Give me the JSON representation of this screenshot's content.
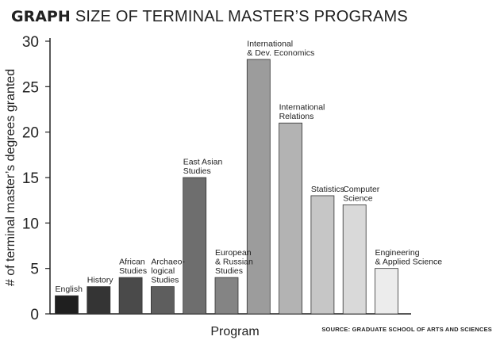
{
  "header": {
    "kicker": "GRAPH",
    "title": "SIZE OF TERMINAL MASTER’S PROGRAMS"
  },
  "source": "SOURCE: GRADUATE SCHOOL OF ARTS AND SCIENCES",
  "chart_data": {
    "type": "bar",
    "title": "SIZE OF TERMINAL MASTER’S PROGRAMS",
    "xlabel": "Program",
    "ylabel": "# of terminal master’s degrees granted",
    "ylim": [
      0,
      30
    ],
    "yticks": [
      0,
      5,
      10,
      15,
      20,
      25,
      30
    ],
    "grid": false,
    "categories": [
      [
        "English"
      ],
      [
        "History"
      ],
      [
        "African",
        "Studies"
      ],
      [
        "Archaeo-",
        "logical",
        "Studies"
      ],
      [
        "East Asian",
        "Studies"
      ],
      [
        "European",
        "& Russian",
        "Studies"
      ],
      [
        "International",
        "& Dev. Economics"
      ],
      [
        "International",
        "Relations"
      ],
      [
        "Statistics"
      ],
      [
        "Computer",
        "Science"
      ],
      [
        "Engineering",
        "& Applied Science"
      ]
    ],
    "values": [
      2,
      3,
      4,
      3,
      15,
      4,
      28,
      21,
      13,
      12,
      5
    ],
    "colors": [
      "#1f1f1f",
      "#343434",
      "#4a4a4a",
      "#5e5e5e",
      "#6e6e6e",
      "#848484",
      "#9c9c9c",
      "#b3b3b3",
      "#c6c6c6",
      "#d9d9d9",
      "#ececec"
    ]
  }
}
